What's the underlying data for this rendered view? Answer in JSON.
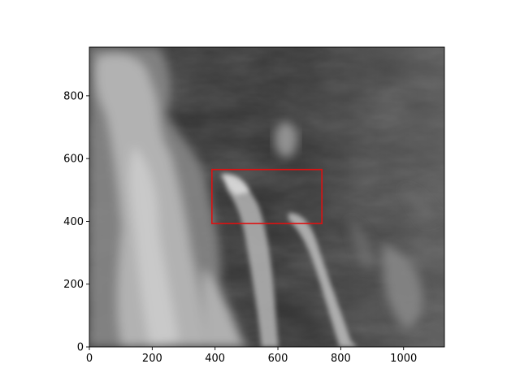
{
  "image": {
    "description_kind": "grayscale cloud image",
    "x_range": [
      0,
      1130
    ],
    "y_range": [
      0,
      955
    ],
    "y_origin": "bottom"
  },
  "axes": {
    "x_ticks": [
      0,
      200,
      400,
      600,
      800,
      1000
    ],
    "y_ticks": [
      0,
      200,
      400,
      600,
      800
    ],
    "x_tick_labels": [
      "0",
      "200",
      "400",
      "600",
      "800",
      "1000"
    ],
    "y_tick_labels": [
      "0",
      "200",
      "400",
      "600",
      "800"
    ]
  },
  "overlay": {
    "roi_box": {
      "x0": 390,
      "x1": 740,
      "y0": 393,
      "y1": 565
    },
    "color": "#dd1111"
  }
}
